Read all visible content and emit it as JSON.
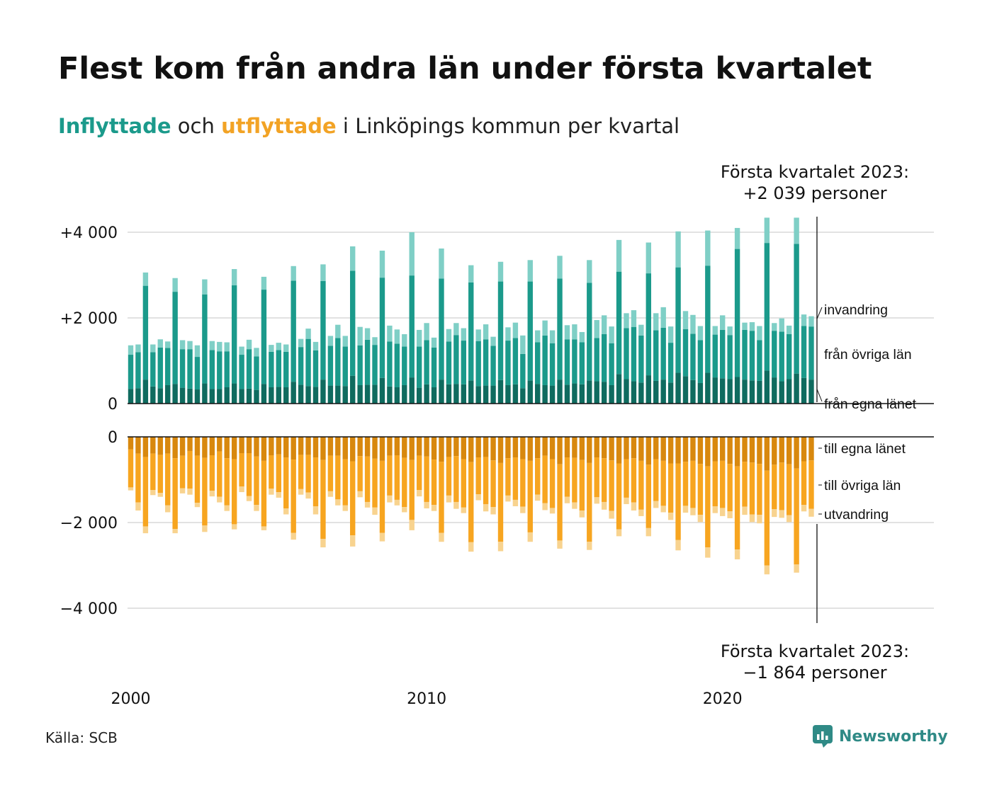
{
  "title": "Flest kom från andra län under första kvartalet",
  "subtitle": {
    "part_in": "Inflyttade",
    "part_mid": " och ",
    "part_out": "utflyttade",
    "part_end": " i Linköpings kommun per kvartal"
  },
  "callout_top": {
    "line1": "Första kvartalet 2023:",
    "line2": "+2 039 personer"
  },
  "callout_bottom": {
    "line1": "Första kvartalet 2023:",
    "line2": "−1 864 personer"
  },
  "source": "Källa: SCB",
  "brand": {
    "name": "Newsworthy",
    "icon": "newsworthy-logo-icon",
    "color": "#2f8a86"
  },
  "colors": {
    "in_own": "#0f6b5f",
    "in_other": "#1b9a8b",
    "in_immig": "#7fcfc6",
    "out_own": "#d8880e",
    "out_other": "#f7a520",
    "out_emig": "#f8d38f",
    "grid": "#e2e2e2",
    "axis": "#111111"
  },
  "chart_data": {
    "type": "bar",
    "stacked": true,
    "x_ticks": [
      "2000",
      "2010",
      "2020"
    ],
    "top_panel": {
      "y_ticks": [
        "0",
        "+2 000",
        "+4 000"
      ],
      "ylim": [
        0,
        4300
      ],
      "series_labels": [
        "invandring",
        "från övriga län",
        "från egna länet"
      ]
    },
    "bottom_panel": {
      "y_ticks": [
        "0",
        "−2 000",
        "−4 000"
      ],
      "ylim": [
        -4300,
        0
      ],
      "series_labels": [
        "till egna länet",
        "till övriga län",
        "utvandring"
      ]
    },
    "periods": "2000 Q1 – 2023 Q1 (93 kvartal)",
    "inflow_total": [
      1360,
      1380,
      3060,
      1380,
      1500,
      1450,
      2930,
      1480,
      1460,
      1360,
      2900,
      1460,
      1440,
      1430,
      3140,
      1330,
      1490,
      1300,
      2960,
      1370,
      1420,
      1380,
      3210,
      1510,
      1750,
      1440,
      3250,
      1580,
      1840,
      1580,
      3670,
      1790,
      1760,
      1550,
      3570,
      1820,
      1730,
      1620,
      4000,
      1720,
      1880,
      1540,
      3620,
      1740,
      1880,
      1760,
      3230,
      1730,
      1850,
      1560,
      3310,
      1780,
      1890,
      1590,
      3350,
      1710,
      1940,
      1710,
      3450,
      1830,
      1850,
      1670,
      3350,
      1950,
      2060,
      1800,
      3820,
      2110,
      2180,
      1840,
      3760,
      2110,
      2250,
      1800,
      4020,
      2160,
      2070,
      1810,
      4040,
      1810,
      2060,
      1800,
      4100,
      1890,
      1900,
      1810,
      4340,
      1880,
      1990,
      1820,
      4340,
      2080,
      2039
    ],
    "inflow_own": [
      340,
      360,
      560,
      400,
      360,
      430,
      460,
      370,
      350,
      330,
      470,
      340,
      340,
      380,
      470,
      340,
      350,
      320,
      460,
      380,
      390,
      380,
      510,
      440,
      410,
      390,
      560,
      420,
      420,
      410,
      650,
      430,
      440,
      440,
      600,
      400,
      380,
      430,
      610,
      370,
      450,
      380,
      560,
      450,
      460,
      450,
      540,
      410,
      420,
      420,
      550,
      430,
      450,
      360,
      540,
      460,
      430,
      420,
      560,
      440,
      470,
      450,
      540,
      520,
      510,
      430,
      690,
      570,
      520,
      490,
      660,
      530,
      560,
      490,
      720,
      640,
      550,
      480,
      720,
      610,
      590,
      570,
      620,
      560,
      540,
      530,
      770,
      610,
      520,
      570,
      700,
      600,
      560
    ],
    "inflow_other": [
      800,
      840,
      2190,
      800,
      950,
      870,
      2150,
      900,
      920,
      760,
      2080,
      910,
      880,
      840,
      2290,
      800,
      920,
      780,
      2200,
      830,
      860,
      830,
      2360,
      880,
      1100,
      850,
      2300,
      930,
      1110,
      920,
      2450,
      930,
      1050,
      930,
      2340,
      1050,
      1020,
      900,
      2380,
      960,
      1030,
      930,
      2360,
      1000,
      1140,
      1020,
      2290,
      1050,
      1080,
      930,
      2300,
      1040,
      1080,
      800,
      2310,
      970,
      1160,
      990,
      2360,
      1060,
      1030,
      980,
      2280,
      1010,
      1110,
      980,
      2390,
      1190,
      1270,
      1100,
      2380,
      1180,
      1210,
      930,
      2460,
      1100,
      1080,
      1000,
      2500,
      1000,
      1130,
      1030,
      2990,
      1160,
      1160,
      950,
      2980,
      1090,
      1160,
      1050,
      3030,
      1210,
      1239
    ],
    "outflow_total": [
      1250,
      1720,
      2250,
      1360,
      1400,
      1760,
      2250,
      1320,
      1350,
      1640,
      2220,
      1390,
      1530,
      1730,
      2160,
      1290,
      1500,
      1730,
      2180,
      1350,
      1420,
      1810,
      2400,
      1350,
      1440,
      1810,
      2580,
      1400,
      1600,
      1730,
      2560,
      1410,
      1650,
      1820,
      2440,
      1530,
      1600,
      1760,
      2180,
      1390,
      1670,
      1730,
      2450,
      1530,
      1680,
      1780,
      2680,
      1480,
      1740,
      1810,
      2670,
      1510,
      1620,
      1780,
      2450,
      1490,
      1710,
      1790,
      2610,
      1550,
      1680,
      1880,
      2640,
      1560,
      1700,
      1910,
      2320,
      1570,
      1720,
      1850,
      2320,
      1660,
      1760,
      1940,
      2650,
      1770,
      1830,
      1990,
      2820,
      1780,
      1850,
      1900,
      2860,
      1820,
      1990,
      2020,
      3210,
      1870,
      1890,
      1990,
      3170,
      1740,
      1864
    ],
    "outflow_own": [
      290,
      390,
      470,
      390,
      420,
      390,
      500,
      440,
      330,
      440,
      490,
      430,
      340,
      500,
      520,
      380,
      380,
      460,
      560,
      430,
      410,
      480,
      530,
      420,
      420,
      480,
      540,
      440,
      440,
      520,
      570,
      450,
      460,
      510,
      560,
      440,
      430,
      490,
      540,
      440,
      460,
      530,
      580,
      470,
      450,
      520,
      590,
      480,
      470,
      550,
      610,
      500,
      480,
      520,
      560,
      500,
      440,
      520,
      640,
      480,
      490,
      540,
      610,
      480,
      500,
      550,
      620,
      520,
      500,
      560,
      650,
      520,
      560,
      620,
      620,
      580,
      560,
      630,
      690,
      570,
      560,
      630,
      690,
      580,
      600,
      630,
      790,
      650,
      600,
      640,
      740,
      570,
      550
    ],
    "outflow_other": [
      890,
      1140,
      1620,
      850,
      890,
      1210,
      1650,
      760,
      880,
      1100,
      1580,
      830,
      1060,
      1100,
      1520,
      780,
      1000,
      1130,
      1530,
      780,
      880,
      1190,
      1710,
      800,
      880,
      1140,
      1840,
      830,
      1020,
      1080,
      1730,
      820,
      1060,
      1140,
      1680,
      930,
      1040,
      1150,
      1400,
      800,
      1060,
      1060,
      1660,
      900,
      1070,
      1130,
      1870,
      860,
      1100,
      1090,
      1840,
      870,
      990,
      1110,
      1670,
      850,
      1110,
      1140,
      1780,
      920,
      1040,
      1180,
      1840,
      930,
      1020,
      1180,
      1540,
      900,
      1030,
      1140,
      1480,
      980,
      1050,
      1150,
      1790,
      1030,
      1100,
      1190,
      1890,
      1050,
      1100,
      1110,
      1940,
      1050,
      1210,
      1190,
      2210,
      1040,
      1110,
      1190,
      2240,
      1020,
      1132
    ]
  }
}
